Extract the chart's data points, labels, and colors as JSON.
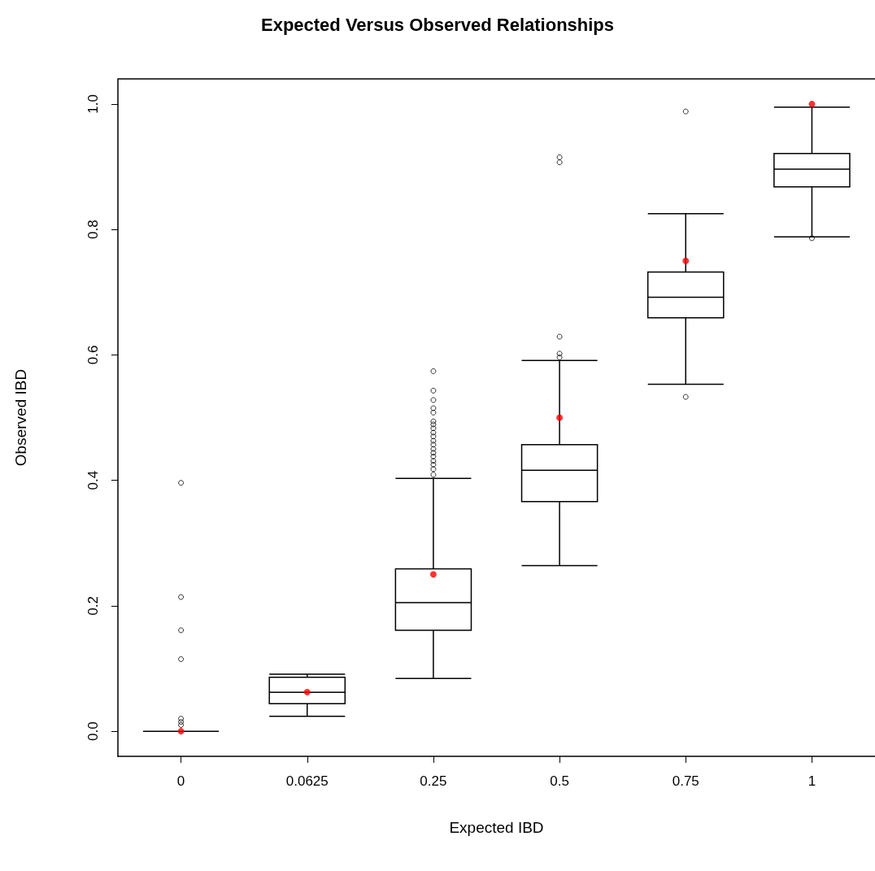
{
  "chart_data": {
    "type": "box",
    "title": "Expected Versus Observed Relationships",
    "xlabel": "Expected IBD",
    "ylabel": "Observed IBD",
    "categories": [
      "0",
      "0.0625",
      "0.25",
      "0.5",
      "0.75",
      "1"
    ],
    "series": [
      {
        "color": "#000000",
        "boxes": [
          {
            "low": 0,
            "q1": 0,
            "median": 0,
            "q3": 0,
            "high": 0,
            "outliers": [
              0.396,
              0.214,
              0.161,
              0.115,
              0.02,
              0.015,
              0.01
            ]
          },
          {
            "low": 0.024,
            "q1": 0.044,
            "median": 0.062,
            "q3": 0.086,
            "high": 0.091
          },
          {
            "low": 0.084,
            "q1": 0.161,
            "median": 0.205,
            "q3": 0.259,
            "high": 0.403,
            "outliers": [
              0.574,
              0.543,
              0.528,
              0.515,
              0.508,
              0.494,
              0.489,
              0.483,
              0.476,
              0.47,
              0.463,
              0.457,
              0.45,
              0.444,
              0.438,
              0.431,
              0.425,
              0.418,
              0.409
            ]
          },
          {
            "low": 0.264,
            "q1": 0.366,
            "median": 0.416,
            "q3": 0.457,
            "high": 0.591,
            "outliers": [
              0.629,
              0.602,
              0.596,
              0.907,
              0.915
            ]
          },
          {
            "low": 0.553,
            "q1": 0.659,
            "median": 0.692,
            "q3": 0.732,
            "high": 0.825,
            "outliers": [
              0.988,
              0.533
            ]
          },
          {
            "low": 0.788,
            "q1": 0.868,
            "median": 0.896,
            "q3": 0.921,
            "high": 0.995,
            "outliers": [
              0.786
            ]
          }
        ]
      },
      {
        "type": "scatter",
        "color": "#ff0000",
        "marker": "circle",
        "x": [
          "0",
          "0.0625",
          "0.25",
          "0.5",
          "0.75",
          "1"
        ],
        "values": [
          0,
          0.0625,
          0.25,
          0.5,
          0.75,
          1
        ]
      }
    ],
    "ylim": [
      -0.04,
      1.04
    ],
    "yticks": [
      {
        "value": 0,
        "label": "0.0"
      },
      0.2,
      0.4,
      0.6,
      0.8,
      {
        "value": 1,
        "label": "1.0"
      }
    ],
    "grid": false
  }
}
